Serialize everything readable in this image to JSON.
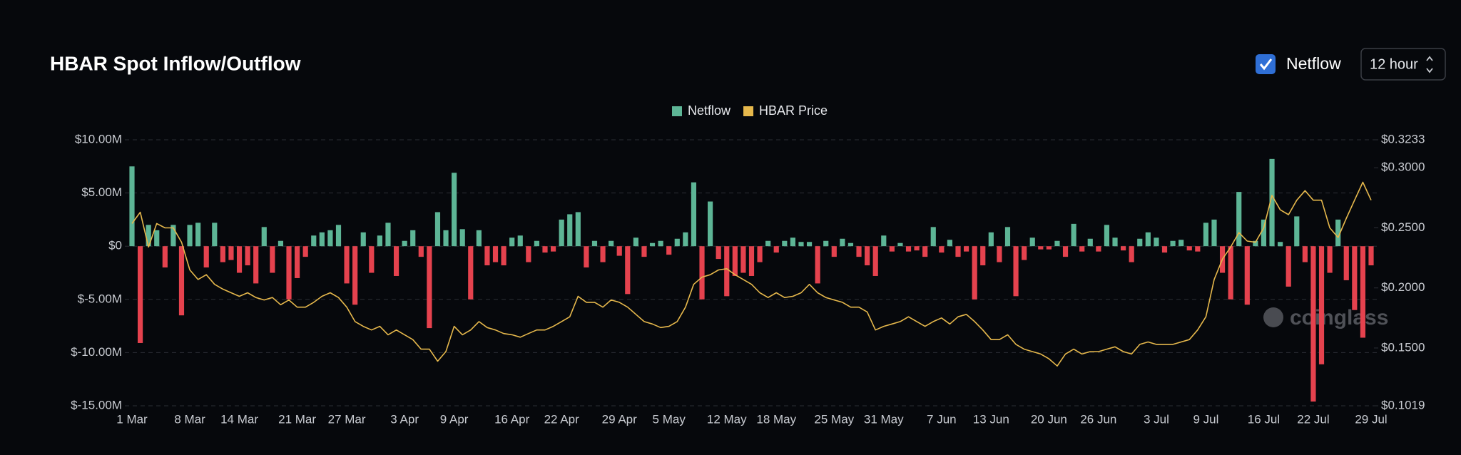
{
  "chart_data": {
    "type": "bar",
    "title": "HBAR Spot Inflow/Outflow",
    "categories": [
      "1 Mar",
      null,
      null,
      null,
      null,
      null,
      null,
      "8 Mar",
      null,
      null,
      null,
      null,
      null,
      "14 Mar",
      null,
      null,
      null,
      null,
      null,
      null,
      "21 Mar",
      null,
      null,
      null,
      null,
      null,
      "27 Mar",
      null,
      null,
      null,
      null,
      null,
      null,
      "3 Apr",
      null,
      null,
      null,
      null,
      null,
      "9 Apr",
      null,
      null,
      null,
      null,
      null,
      null,
      "16 Apr",
      null,
      null,
      null,
      null,
      null,
      "22 Apr",
      null,
      null,
      null,
      null,
      null,
      null,
      "29 Apr",
      null,
      null,
      null,
      null,
      null,
      "5 May",
      null,
      null,
      null,
      null,
      null,
      null,
      "12 May",
      null,
      null,
      null,
      null,
      null,
      "18 May",
      null,
      null,
      null,
      null,
      null,
      null,
      "25 May",
      null,
      null,
      null,
      null,
      null,
      "31 May",
      null,
      null,
      null,
      null,
      null,
      null,
      "7 Jun",
      null,
      null,
      null,
      null,
      null,
      "13 Jun",
      null,
      null,
      null,
      null,
      null,
      null,
      "20 Jun",
      null,
      null,
      null,
      null,
      null,
      "26 Jun",
      null,
      null,
      null,
      null,
      null,
      null,
      "3 Jul",
      null,
      null,
      null,
      null,
      null,
      "9 Jul",
      null,
      null,
      null,
      null,
      null,
      null,
      "16 Jul",
      null,
      null,
      null,
      null,
      null,
      "22 Jul",
      null,
      null,
      null,
      null,
      null,
      null,
      "29 Jul"
    ],
    "series": [
      {
        "name": "Netflow",
        "color": "#5db596",
        "negative_color": "#e5424e",
        "values": [
          7.5,
          -9.1,
          2,
          1.5,
          -2,
          2,
          -6.5,
          2,
          2.2,
          -2,
          2.2,
          -1.5,
          -1.3,
          -2.5,
          -1.8,
          -3.5,
          1.8,
          -2.5,
          0.5,
          -5,
          -3,
          -1,
          1,
          1.3,
          1.5,
          2,
          -3.5,
          -5.5,
          1.3,
          -2.5,
          1,
          2.2,
          -2.8,
          0.5,
          1.5,
          -1,
          -7.7,
          3.2,
          1.5,
          6.9,
          1.6,
          -5,
          1.5,
          -1.8,
          -1.5,
          -1.8,
          0.8,
          1,
          -1.5,
          0.5,
          -0.6,
          -0.5,
          2.5,
          3,
          3.2,
          -2,
          0.5,
          -1.5,
          0.5,
          -0.9,
          -4.5,
          0.8,
          -1,
          0.3,
          0.5,
          -0.8,
          0.7,
          1.3,
          6,
          -5,
          4.2,
          -1.2,
          -4.7,
          -2.8,
          -2.5,
          -2.8,
          -1.5,
          0.5,
          -0.6,
          0.5,
          0.8,
          0.4,
          0.4,
          -3.5,
          0.5,
          -1,
          0.7,
          0.3,
          -1,
          -1.8,
          -2.8,
          1,
          -0.5,
          0.3,
          -0.5,
          -0.4,
          -1,
          1.8,
          -0.6,
          0.6,
          -1,
          -0.5,
          -5,
          -1.8,
          1.3,
          -1.5,
          1.8,
          -4.7,
          -1.3,
          0.8,
          -0.3,
          -0.3,
          0.5,
          -1,
          2.1,
          -0.5,
          0.7,
          -0.5,
          2,
          0.8,
          -0.4,
          -1.5,
          0.7,
          1.3,
          0.8,
          -0.6,
          0.5,
          0.6,
          -0.4,
          -0.5,
          2.2,
          2.5,
          -2.5,
          -5,
          5.1,
          -5.5,
          0.5,
          2.5,
          8.2,
          0.4,
          -3.8,
          2.8,
          -1.5,
          -14.6,
          -11.1,
          -2.5,
          2.5,
          -3.2,
          -6,
          -8.6,
          -1.8
        ]
      },
      {
        "name": "HBAR Price",
        "type": "line",
        "axis": "y2",
        "color": "#e6b84c",
        "values": [
          0.2536,
          0.263,
          0.234,
          0.2536,
          0.25,
          0.25,
          0.238,
          0.215,
          0.207,
          0.211,
          0.203,
          0.199,
          0.196,
          0.193,
          0.196,
          0.192,
          0.19,
          0.192,
          0.186,
          0.19,
          0.184,
          0.184,
          0.188,
          0.193,
          0.196,
          0.192,
          0.184,
          0.172,
          0.168,
          0.165,
          0.168,
          0.161,
          0.165,
          0.161,
          0.157,
          0.149,
          0.149,
          0.139,
          0.147,
          0.168,
          0.161,
          0.165,
          0.172,
          0.167,
          0.165,
          0.162,
          0.161,
          0.159,
          0.162,
          0.165,
          0.165,
          0.168,
          0.172,
          0.176,
          0.193,
          0.188,
          0.188,
          0.184,
          0.19,
          0.188,
          0.184,
          0.178,
          0.172,
          0.17,
          0.167,
          0.168,
          0.172,
          0.184,
          0.203,
          0.209,
          0.211,
          0.215,
          0.216,
          0.211,
          0.207,
          0.203,
          0.196,
          0.192,
          0.196,
          0.192,
          0.193,
          0.196,
          0.203,
          0.196,
          0.192,
          0.19,
          0.188,
          0.184,
          0.184,
          0.18,
          0.165,
          0.168,
          0.17,
          0.172,
          0.176,
          0.172,
          0.168,
          0.172,
          0.175,
          0.17,
          0.176,
          0.178,
          0.172,
          0.165,
          0.157,
          0.157,
          0.161,
          0.153,
          0.149,
          0.147,
          0.145,
          0.141,
          0.135,
          0.145,
          0.149,
          0.145,
          0.147,
          0.147,
          0.149,
          0.151,
          0.147,
          0.145,
          0.153,
          0.155,
          0.153,
          0.153,
          0.153,
          0.155,
          0.157,
          0.165,
          0.176,
          0.207,
          0.224,
          0.234,
          0.246,
          0.239,
          0.238,
          0.25,
          0.277,
          0.265,
          0.261,
          0.273,
          0.281,
          0.273,
          0.273,
          0.25,
          0.242,
          0.258,
          0.273,
          0.288,
          0.273
        ]
      }
    ],
    "ylim": [
      -15,
      10
    ],
    "yticks": [
      {
        "value": 10,
        "label": "$10.00M"
      },
      {
        "value": 5,
        "label": "$5.00M"
      },
      {
        "value": 0,
        "label": "$0"
      },
      {
        "value": -5,
        "label": "$-5.00M"
      },
      {
        "value": -10,
        "label": "$-10.00M"
      },
      {
        "value": -15,
        "label": "$-15.00M"
      }
    ],
    "y2lim": [
      0.1019,
      0.3233
    ],
    "y2ticks": [
      {
        "value": 0.3233,
        "label": "$0.3233"
      },
      {
        "value": 0.3,
        "label": "$0.3000"
      },
      {
        "value": 0.25,
        "label": "$0.2500"
      },
      {
        "value": 0.2,
        "label": "$0.2000"
      },
      {
        "value": 0.15,
        "label": "$0.1500"
      },
      {
        "value": 0.1019,
        "label": "$0.1019"
      }
    ],
    "grid": true
  },
  "controls": {
    "checkbox_label": "Netflow",
    "checkbox_checked": true,
    "interval": "12 hour"
  },
  "watermark": "coinglass"
}
